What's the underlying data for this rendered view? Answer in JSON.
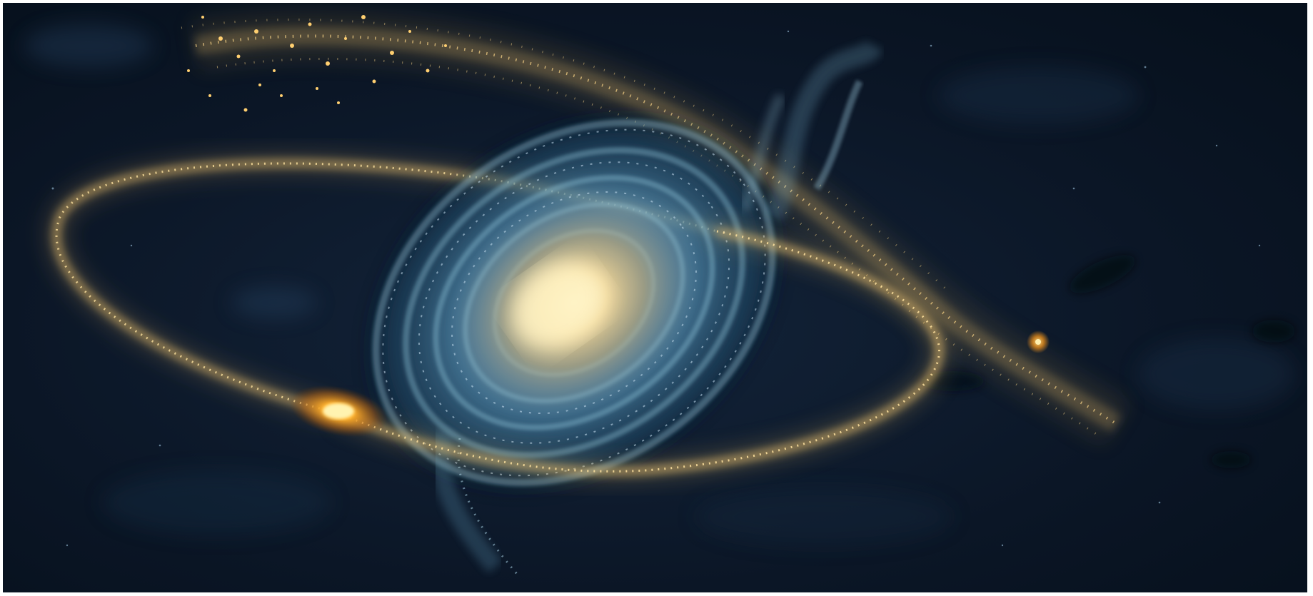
{
  "image": {
    "colors": {
      "background": "#0b1626",
      "background_deep": "#06101c",
      "galaxy_core": "#fff0b8",
      "galaxy_inner": "#e8c27a",
      "galaxy_arms": "#5e98b8",
      "galaxy_arms_dark": "#1e4a66",
      "stream_gold": "#e3b45a",
      "stream_bright": "#ffd98a",
      "satellite_glow": "#ff9a1a",
      "small_star": "#ffb33a"
    }
  }
}
